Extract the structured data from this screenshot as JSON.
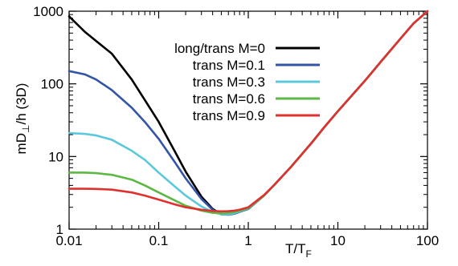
{
  "chart_data": {
    "type": "line",
    "xlabel": "T/T",
    "xlabel_sub": "F",
    "ylabel": "mD",
    "ylabel_sub": "⊥",
    "ylabel_rest": "/h (3D)",
    "x_scale": "log",
    "y_scale": "log",
    "xlim": [
      0.01,
      100
    ],
    "ylim": [
      1,
      1000
    ],
    "x_ticks": [
      0.01,
      0.1,
      1,
      10,
      100
    ],
    "x_tick_labels": [
      "0.01",
      "0.1",
      "1",
      "10",
      "100"
    ],
    "y_ticks": [
      1,
      10,
      100,
      1000
    ],
    "y_tick_labels": [
      "1",
      "10",
      "100",
      "1000"
    ],
    "grid": false,
    "legend_position": "top-right",
    "series": [
      {
        "name": "long/trans M=0",
        "color": "#000000",
        "x": [
          0.01,
          0.015,
          0.02,
          0.03,
          0.05,
          0.07,
          0.1,
          0.15,
          0.2,
          0.3,
          0.4,
          0.5,
          0.6,
          0.7,
          0.8,
          1.0,
          1.5,
          2,
          3,
          5,
          7,
          10,
          20,
          30,
          50,
          70,
          100
        ],
        "y": [
          850,
          520,
          390,
          260,
          115,
          60,
          30,
          12,
          6.2,
          2.8,
          1.9,
          1.6,
          1.6,
          1.65,
          1.75,
          1.9,
          2.9,
          4.2,
          7.2,
          15,
          25,
          42,
          110,
          200,
          420,
          680,
          1000
        ]
      },
      {
        "name": "trans M=0.1",
        "color": "#3355a8",
        "x": [
          0.01,
          0.015,
          0.02,
          0.03,
          0.05,
          0.07,
          0.1,
          0.15,
          0.2,
          0.3,
          0.4,
          0.5,
          0.6,
          0.7,
          0.8,
          1.0,
          1.5,
          2,
          3,
          5,
          7,
          10,
          20,
          30,
          50,
          70,
          100
        ],
        "y": [
          150,
          135,
          115,
          82,
          47,
          30,
          17.5,
          8.5,
          5.0,
          2.6,
          1.85,
          1.6,
          1.58,
          1.63,
          1.73,
          1.9,
          2.9,
          4.2,
          7.2,
          15,
          25,
          42,
          110,
          200,
          420,
          680,
          1000
        ]
      },
      {
        "name": "trans M=0.3",
        "color": "#5bc8dc",
        "x": [
          0.01,
          0.015,
          0.02,
          0.03,
          0.05,
          0.07,
          0.1,
          0.15,
          0.2,
          0.3,
          0.4,
          0.5,
          0.6,
          0.7,
          0.8,
          1.0,
          1.5,
          2,
          3,
          5,
          7,
          10,
          20,
          30,
          50,
          70,
          100
        ],
        "y": [
          21,
          20.5,
          19.5,
          17,
          12,
          9,
          6.0,
          3.9,
          2.9,
          2.05,
          1.72,
          1.6,
          1.6,
          1.66,
          1.76,
          1.92,
          2.9,
          4.2,
          7.2,
          15,
          25,
          42,
          110,
          200,
          420,
          680,
          1000
        ]
      },
      {
        "name": "trans M=0.6",
        "color": "#5ab843",
        "x": [
          0.01,
          0.015,
          0.02,
          0.03,
          0.05,
          0.07,
          0.1,
          0.15,
          0.2,
          0.3,
          0.4,
          0.5,
          0.6,
          0.7,
          0.8,
          1.0,
          1.5,
          2,
          3,
          5,
          7,
          10,
          20,
          30,
          50,
          70,
          100
        ],
        "y": [
          6.0,
          6.0,
          5.9,
          5.6,
          4.8,
          4.0,
          3.2,
          2.5,
          2.1,
          1.8,
          1.68,
          1.66,
          1.68,
          1.72,
          1.8,
          1.95,
          2.9,
          4.2,
          7.2,
          15,
          25,
          42,
          110,
          200,
          420,
          680,
          1000
        ]
      },
      {
        "name": "trans M=0.9",
        "color": "#e03030",
        "x": [
          0.01,
          0.015,
          0.02,
          0.03,
          0.05,
          0.07,
          0.1,
          0.15,
          0.2,
          0.3,
          0.4,
          0.5,
          0.6,
          0.7,
          0.8,
          1.0,
          1.5,
          2,
          3,
          5,
          7,
          10,
          20,
          30,
          50,
          70,
          100
        ],
        "y": [
          3.6,
          3.6,
          3.58,
          3.5,
          3.2,
          2.9,
          2.55,
          2.2,
          2.0,
          1.85,
          1.78,
          1.76,
          1.77,
          1.8,
          1.85,
          2.0,
          2.95,
          4.2,
          7.2,
          15,
          25,
          42,
          110,
          200,
          420,
          680,
          1000
        ]
      }
    ]
  }
}
